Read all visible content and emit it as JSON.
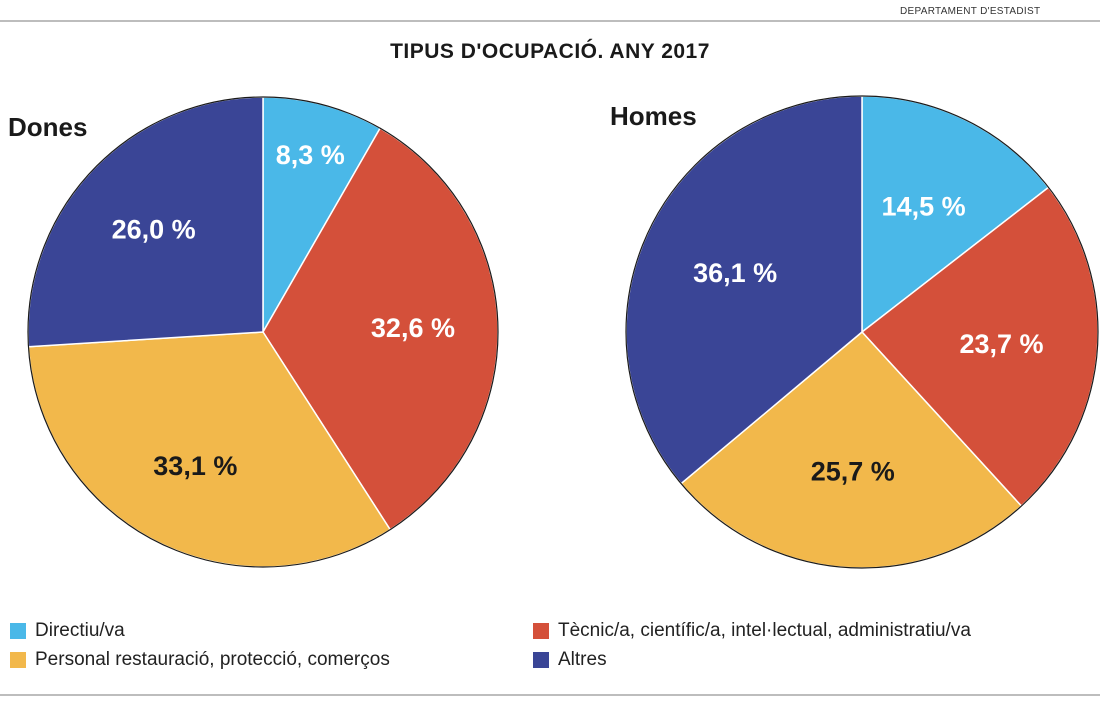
{
  "source": "DEPARTAMENT D'ESTADÍST",
  "chart_data": {
    "type": "pie",
    "title": "TIPUS D'OCUPACIÓ. ANY 2017",
    "categories": [
      "Directiu/va",
      "Tècnic/a, científic/a, intel·lectual, administratiu/va",
      "Personal restauració, protecció, comerços",
      "Altres"
    ],
    "colors": [
      "#4ab8e8",
      "#d4503a",
      "#f2b84b",
      "#3a4596"
    ],
    "label_colors": [
      "#ffffff",
      "#ffffff",
      "#1a1a1a",
      "#ffffff"
    ],
    "series": [
      {
        "name": "Dones",
        "values": [
          8.3,
          32.6,
          33.1,
          26.0
        ],
        "labels": [
          "8,3 %",
          "32,6 %",
          "33,1 %",
          "26,0 %"
        ]
      },
      {
        "name": "Homes",
        "values": [
          14.5,
          23.7,
          25.7,
          36.1
        ],
        "labels": [
          "14,5 %",
          "23,7 %",
          "25,7 %",
          "36,1 %"
        ]
      }
    ],
    "legend": {
      "placement": "bottom",
      "items": [
        "Directiu/va",
        "Tècnic/a, científic/a, intel·lectual, administratiu/va",
        "Personal restauració, protecció, comerços",
        "Altres"
      ]
    }
  }
}
